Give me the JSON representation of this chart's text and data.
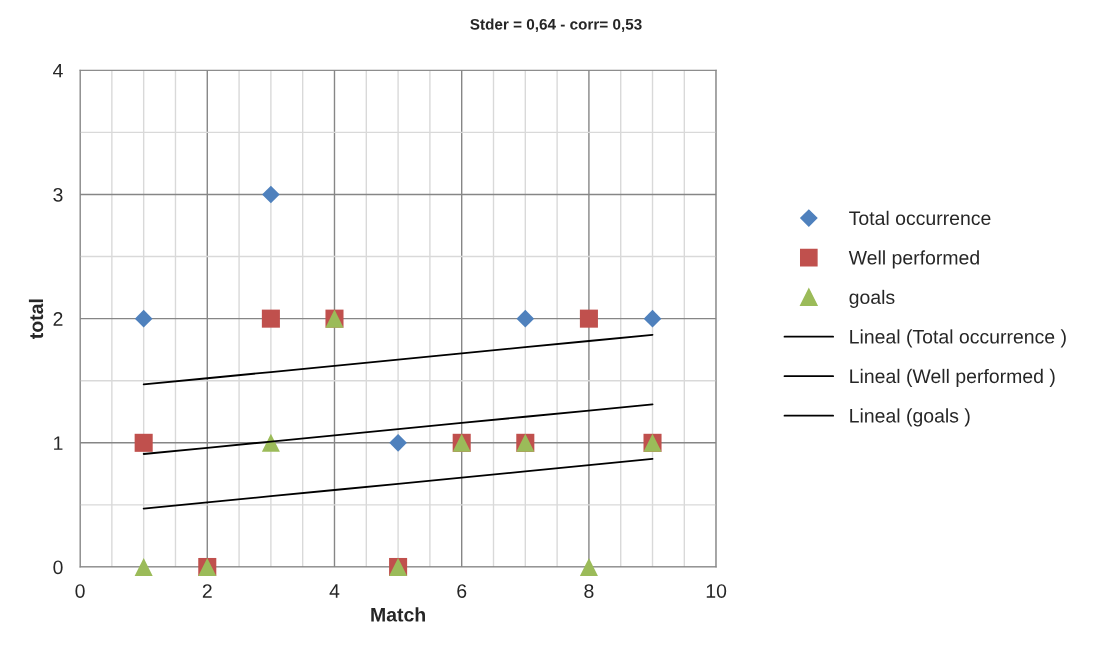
{
  "chart_data": {
    "type": "scatter",
    "title": "Stder = 0,64 - corr= 0,53",
    "xlabel": "Match",
    "ylabel": "total",
    "x": [
      1,
      2,
      3,
      4,
      5,
      6,
      7,
      8,
      9
    ],
    "series": [
      {
        "name": "Total occurrence",
        "color": "#4f81bd",
        "marker": "diamond",
        "values": [
          2,
          null,
          3,
          null,
          1,
          null,
          2,
          null,
          2
        ]
      },
      {
        "name": "Well performed",
        "color": "#c0504d",
        "marker": "square",
        "values": [
          1,
          0,
          2,
          2,
          0,
          1,
          1,
          2,
          1
        ]
      },
      {
        "name": "goals",
        "color": "#9bbb59",
        "marker": "triangle",
        "values": [
          0,
          0,
          1,
          2,
          0,
          1,
          1,
          0,
          1
        ]
      },
      {
        "name": "Lineal (Total occurrence )",
        "type": "line",
        "color": "#000000",
        "marker": "none",
        "values": [
          1.47,
          1.52,
          1.57,
          1.62,
          1.67,
          1.72,
          1.77,
          1.82,
          1.87
        ]
      },
      {
        "name": "Lineal (Well performed )",
        "type": "line",
        "color": "#000000",
        "marker": "none",
        "values": [
          0.91,
          0.96,
          1.01,
          1.06,
          1.11,
          1.16,
          1.21,
          1.26,
          1.31
        ]
      },
      {
        "name": "Lineal (goals )",
        "type": "line",
        "color": "#000000",
        "marker": "none",
        "values": [
          0.47,
          0.52,
          0.57,
          0.62,
          0.67,
          0.72,
          0.77,
          0.82,
          0.87
        ]
      }
    ],
    "xlim": [
      0,
      10
    ],
    "ylim": [
      0,
      4
    ],
    "xticks": [
      0,
      {
        "value": 0.5,
        "label": null
      },
      {
        "value": 1,
        "label": null
      },
      {
        "value": 1.5,
        "label": null
      },
      2,
      {
        "value": 2.5,
        "label": null
      },
      {
        "value": 3,
        "label": null
      },
      {
        "value": 3.5,
        "label": null
      },
      4,
      {
        "value": 4.5,
        "label": null
      },
      {
        "value": 5,
        "label": null
      },
      {
        "value": 5.5,
        "label": null
      },
      6,
      {
        "value": 6.5,
        "label": null
      },
      {
        "value": 7,
        "label": null
      },
      {
        "value": 7.5,
        "label": null
      },
      8,
      {
        "value": 8.5,
        "label": null
      },
      {
        "value": 9,
        "label": null
      },
      {
        "value": 9.5,
        "label": null
      },
      10
    ],
    "yticks": [
      0,
      {
        "value": 0.5,
        "label": null
      },
      1,
      {
        "value": 1.5,
        "label": null
      },
      2,
      {
        "value": 2.5,
        "label": null
      },
      3,
      {
        "value": 3.5,
        "label": null
      },
      4
    ],
    "grid": true,
    "legend": "right"
  }
}
